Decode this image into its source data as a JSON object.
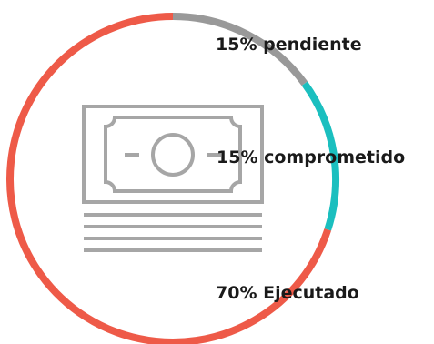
{
  "colors": {
    "pendiente": "#999999",
    "comprometido": "#1bbfbf",
    "ejecutado": "#ee5a48",
    "icon": "#a6a6a6"
  },
  "center_icon": "banknote-stack-icon",
  "chart_data": {
    "type": "pie",
    "donut": true,
    "title": "",
    "slices": [
      {
        "label": "15% pendiente",
        "value": 15,
        "color": "#999999"
      },
      {
        "label": "15% comprometido",
        "value": 15,
        "color": "#1bbfbf"
      },
      {
        "label": "70% Ejecutado",
        "value": 70,
        "color": "#ee5a48"
      }
    ],
    "start": "top",
    "direction": "clockwise"
  }
}
